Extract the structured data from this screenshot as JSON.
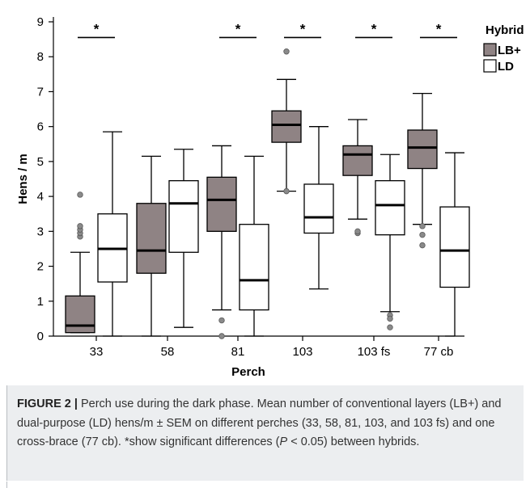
{
  "chart_data": {
    "type": "box",
    "xlabel": "Perch",
    "ylabel": "Hens / m",
    "ylim": [
      0,
      9
    ],
    "yticks": [
      0,
      1,
      2,
      3,
      4,
      5,
      6,
      7,
      8,
      9
    ],
    "categories": [
      "33",
      "58",
      "81",
      "103",
      "103 fs",
      "77 cb"
    ],
    "legend": {
      "title": "Hybrid",
      "placement": "top-right",
      "entries": [
        {
          "label": "LB+",
          "color": "#8f8384"
        },
        {
          "label": "LD",
          "color": "#ffffff"
        }
      ]
    },
    "significance": [
      "*",
      "",
      "*",
      "*",
      "*",
      "*"
    ],
    "series": [
      {
        "name": "LB+",
        "color": "#8f8384",
        "boxes": [
          {
            "min": 0.1,
            "q1": 0.1,
            "median": 0.3,
            "q3": 1.15,
            "max": 2.4,
            "outliers": [
              2.85,
              2.95,
              3.05,
              3.15,
              4.05
            ]
          },
          {
            "min": 0.0,
            "q1": 1.8,
            "median": 2.45,
            "q3": 3.8,
            "max": 5.15,
            "outliers": []
          },
          {
            "min": 0.75,
            "q1": 3.0,
            "median": 3.9,
            "q3": 4.55,
            "max": 5.45,
            "outliers": [
              0.45,
              0.0
            ]
          },
          {
            "min": 4.15,
            "q1": 5.55,
            "median": 6.05,
            "q3": 6.45,
            "max": 7.35,
            "outliers": [
              4.15,
              8.15
            ]
          },
          {
            "min": 3.35,
            "q1": 4.6,
            "median": 5.2,
            "q3": 5.45,
            "max": 6.2,
            "outliers": [
              2.95,
              3.0
            ]
          },
          {
            "min": 3.2,
            "q1": 4.8,
            "median": 5.4,
            "q3": 5.9,
            "max": 6.95,
            "outliers": [
              3.15,
              2.9,
              2.6
            ]
          }
        ]
      },
      {
        "name": "LD",
        "color": "#ffffff",
        "boxes": [
          {
            "min": 0.0,
            "q1": 1.55,
            "median": 2.5,
            "q3": 3.5,
            "max": 5.85,
            "outliers": []
          },
          {
            "min": 0.25,
            "q1": 2.4,
            "median": 3.8,
            "q3": 4.45,
            "max": 5.35,
            "outliers": []
          },
          {
            "min": 0.0,
            "q1": 0.75,
            "median": 1.6,
            "q3": 3.2,
            "max": 5.15,
            "outliers": []
          },
          {
            "min": 1.35,
            "q1": 2.95,
            "median": 3.4,
            "q3": 4.35,
            "max": 6.0,
            "outliers": []
          },
          {
            "min": 0.7,
            "q1": 2.9,
            "median": 3.75,
            "q3": 4.45,
            "max": 5.2,
            "outliers": [
              0.6,
              0.5,
              0.25
            ]
          },
          {
            "min": 0.0,
            "q1": 1.4,
            "median": 2.45,
            "q3": 3.7,
            "max": 5.25,
            "outliers": []
          }
        ]
      }
    ]
  },
  "caption": {
    "figure_label": "FIGURE 2 |",
    "text_1": " Perch use during the dark phase. Mean number of conventional layers (LB+) and dual-purpose (LD) hens/m ± SEM on different perches (33, 58, 81, 103, and 103 fs) and one cross-brace (77 cb). *show significant differences (",
    "p_symbol": "P",
    "text_2": " < 0.05) between hybrids."
  }
}
